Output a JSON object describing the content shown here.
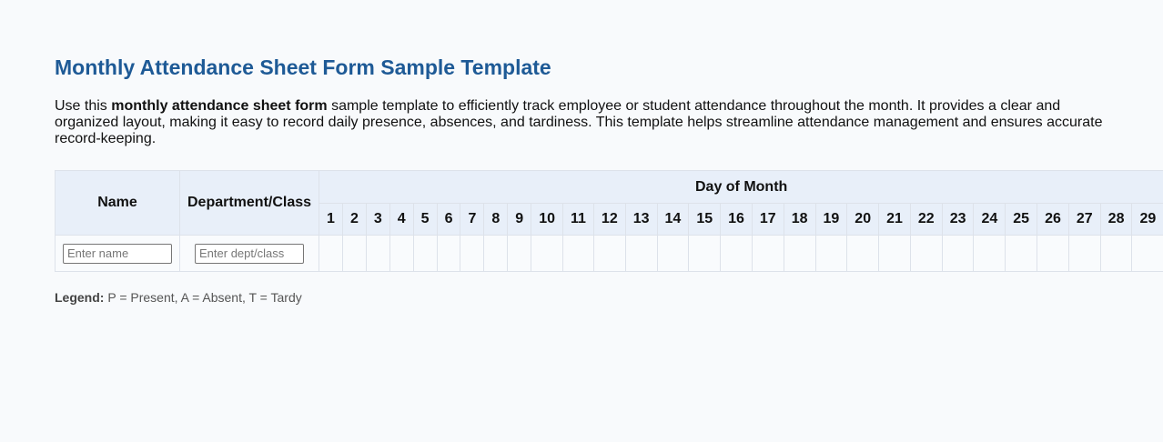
{
  "title": "Monthly Attendance Sheet Form Sample Template",
  "description": {
    "before": "Use this ",
    "bold": "monthly attendance sheet form",
    "after": " sample template to efficiently track employee or student attendance throughout the month. It provides a clear and organized layout, making it easy to record daily presence, absences, and tardiness. This template helps streamline attendance management and ensures accurate record-keeping."
  },
  "table": {
    "headers": {
      "name": "Name",
      "department": "Department/Class",
      "day_of_month": "Day of Month"
    },
    "days": [
      "1",
      "2",
      "3",
      "4",
      "5",
      "6",
      "7",
      "8",
      "9",
      "10",
      "11",
      "12",
      "13",
      "14",
      "15",
      "16",
      "17",
      "18",
      "19",
      "20",
      "21",
      "22",
      "23",
      "24",
      "25",
      "26",
      "27",
      "28",
      "29"
    ],
    "row": {
      "name_value": "",
      "name_placeholder": "Enter name",
      "dept_value": "",
      "dept_placeholder": "Enter dept/class"
    }
  },
  "legend": {
    "label": "Legend:",
    "text": " P = Present, A = Absent, T = Tardy"
  }
}
